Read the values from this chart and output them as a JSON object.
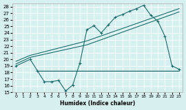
{
  "xlabel": "Humidex (Indice chaleur)",
  "bg_color": "#d6f0f0",
  "line_color": "#1a6b6b",
  "grid_color": "#ffffff",
  "xlim": [
    -0.5,
    23.5
  ],
  "ylim": [
    15,
    28.5
  ],
  "xtick_labels": [
    "0",
    "1",
    "2",
    "3",
    "4",
    "5",
    "6",
    "7",
    "8",
    "9",
    "10",
    "11",
    "12",
    "13",
    "14",
    "15",
    "16",
    "17",
    "18",
    "19",
    "20",
    "21",
    "22",
    "23"
  ],
  "ytick_labels": [
    "15",
    "16",
    "17",
    "18",
    "19",
    "20",
    "21",
    "22",
    "23",
    "24",
    "25",
    "26",
    "27",
    "28"
  ],
  "ytick_vals": [
    15,
    16,
    17,
    18,
    19,
    20,
    21,
    22,
    23,
    24,
    25,
    26,
    27,
    28
  ],
  "xtick_vals": [
    0,
    1,
    2,
    3,
    4,
    5,
    6,
    7,
    8,
    9,
    10,
    11,
    12,
    13,
    14,
    15,
    16,
    17,
    18,
    19,
    20,
    21,
    22,
    23
  ],
  "line1_x": [
    0,
    2,
    3,
    4,
    5,
    6,
    7,
    8,
    9,
    10,
    11,
    12,
    13,
    14,
    15,
    16,
    17,
    18,
    19,
    20,
    21,
    22,
    23
  ],
  "line1_y": [
    19.0,
    20.0,
    18.3,
    16.6,
    16.6,
    16.8,
    15.2,
    16.1,
    19.4,
    24.5,
    25.1,
    24.0,
    25.2,
    26.4,
    26.8,
    27.3,
    27.7,
    28.2,
    26.7,
    25.8,
    23.5,
    19.0,
    18.5
  ],
  "line2_x": [
    0,
    2,
    10,
    23
  ],
  "line2_y": [
    19.3,
    20.3,
    22.2,
    27.2
  ],
  "line3_x": [
    0,
    2,
    10,
    23
  ],
  "line3_y": [
    19.7,
    20.6,
    22.8,
    27.7
  ],
  "hline_y": 18.3,
  "hline_x_start": 3.0,
  "hline_x_end": 23.0
}
